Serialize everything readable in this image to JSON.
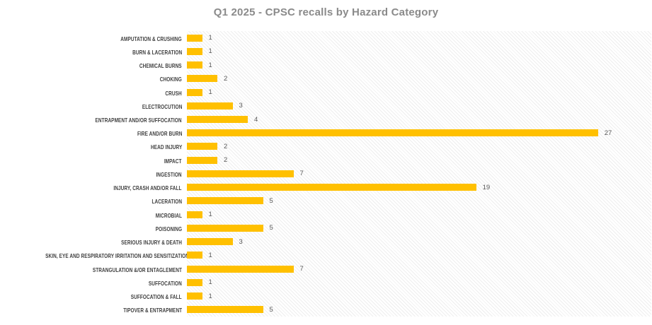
{
  "chart_data": {
    "type": "bar",
    "orientation": "horizontal",
    "title": "Q1 2025 - CPSC recalls by Hazard Category",
    "categories": [
      "AMPUTATION & CRUSHING",
      "BURN & LACERATION",
      "CHEMICAL BURNS",
      "CHOKING",
      "CRUSH",
      "ELECTROCUTION",
      "ENTRAPMENT AND/OR SUFFOCATION",
      "FIRE AND/OR BURN",
      "HEAD INJURY",
      "IMPACT",
      "INGESTION",
      "INJURY, CRASH AND/OR FALL",
      "LACERATION",
      "MICROBIAL",
      "POISONING",
      "SERIOUS INJURY & DEATH",
      "SKIN, EYE AND RESPIRATORY IRRITATION AND SENSITIZATION",
      "STRANGULATION &/OR ENTAGLEMENT",
      "SUFFOCATION",
      "SUFFOCATION & FALL",
      "TIPOVER & ENTRAPMENT"
    ],
    "values": [
      1,
      1,
      1,
      2,
      1,
      3,
      4,
      27,
      2,
      2,
      7,
      19,
      5,
      1,
      5,
      3,
      1,
      7,
      1,
      1,
      5
    ],
    "xlabel": "",
    "ylabel": "",
    "xlim": [
      0,
      30.5
    ],
    "grid": false,
    "legend": false,
    "data_labels": true,
    "plot_background": "light-diagonal-hatch",
    "bar_color": "#FFC000",
    "title_color": "#8a8a8a",
    "category_label_color": "#3f3f3f",
    "value_label_color": "#595959"
  }
}
